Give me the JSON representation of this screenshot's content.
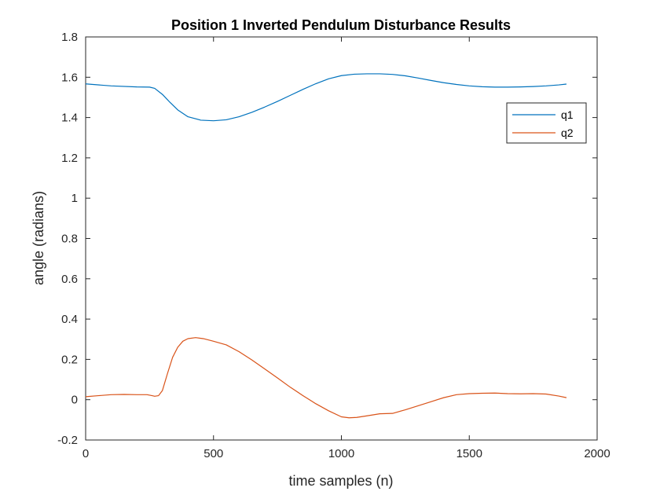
{
  "chart_data": {
    "type": "line",
    "title": "Position 1 Inverted Pendulum Disturbance Results",
    "xlabel": "time samples (n)",
    "ylabel": "angle (radians)",
    "xlim": [
      0,
      2000
    ],
    "ylim": [
      -0.2,
      1.8
    ],
    "xticks": [
      "0",
      "500",
      "1000",
      "1500",
      "2000"
    ],
    "yticks": [
      "-0.2",
      "0",
      "0.2",
      "0.4",
      "0.6",
      "0.8",
      "1",
      "1.2",
      "1.4",
      "1.6",
      "1.8"
    ],
    "grid": false,
    "legend_position": "top-right",
    "series": [
      {
        "name": "q1",
        "color": "#0072bd",
        "x": [
          0,
          100,
          200,
          250,
          270,
          300,
          330,
          360,
          400,
          450,
          500,
          550,
          600,
          650,
          700,
          750,
          800,
          850,
          900,
          950,
          1000,
          1050,
          1100,
          1150,
          1200,
          1250,
          1300,
          1350,
          1400,
          1450,
          1500,
          1550,
          1600,
          1650,
          1700,
          1750,
          1800,
          1850,
          1880
        ],
        "y": [
          1.567,
          1.557,
          1.552,
          1.551,
          1.545,
          1.515,
          1.475,
          1.438,
          1.404,
          1.387,
          1.384,
          1.389,
          1.404,
          1.426,
          1.452,
          1.48,
          1.51,
          1.54,
          1.568,
          1.592,
          1.608,
          1.615,
          1.617,
          1.617,
          1.614,
          1.607,
          1.596,
          1.584,
          1.573,
          1.564,
          1.557,
          1.553,
          1.551,
          1.551,
          1.552,
          1.554,
          1.557,
          1.562,
          1.566
        ]
      },
      {
        "name": "q2",
        "color": "#d95319",
        "x": [
          0,
          50,
          100,
          150,
          200,
          240,
          260,
          270,
          285,
          300,
          320,
          340,
          360,
          380,
          400,
          430,
          460,
          500,
          550,
          600,
          650,
          700,
          750,
          800,
          850,
          900,
          950,
          1000,
          1030,
          1060,
          1100,
          1150,
          1200,
          1250,
          1300,
          1350,
          1400,
          1450,
          1500,
          1550,
          1600,
          1650,
          1700,
          1750,
          1800,
          1850,
          1880
        ],
        "y": [
          0.015,
          0.02,
          0.025,
          0.026,
          0.025,
          0.025,
          0.02,
          0.017,
          0.02,
          0.045,
          0.13,
          0.21,
          0.26,
          0.29,
          0.303,
          0.308,
          0.303,
          0.29,
          0.272,
          0.238,
          0.197,
          0.153,
          0.108,
          0.062,
          0.02,
          -0.02,
          -0.055,
          -0.085,
          -0.09,
          -0.088,
          -0.08,
          -0.07,
          -0.068,
          -0.05,
          -0.03,
          -0.01,
          0.01,
          0.025,
          0.03,
          0.032,
          0.033,
          0.03,
          0.029,
          0.03,
          0.028,
          0.018,
          0.01
        ]
      }
    ]
  }
}
